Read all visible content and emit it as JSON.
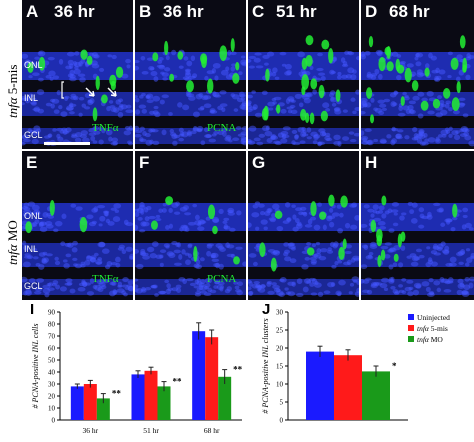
{
  "panels": [
    {
      "id": "A",
      "letter": "A",
      "time": "36 hr",
      "layers": [
        "ONL",
        "INL",
        "GCL"
      ],
      "stain": "TNFα"
    },
    {
      "id": "B",
      "letter": "B",
      "time": "36 hr",
      "stain": "PCNA"
    },
    {
      "id": "C",
      "letter": "C",
      "time": "51 hr"
    },
    {
      "id": "D",
      "letter": "D",
      "time": "68 hr"
    },
    {
      "id": "E",
      "letter": "E",
      "layers": [
        "ONL",
        "INL",
        "GCL"
      ],
      "stain": "TNFα"
    },
    {
      "id": "F",
      "letter": "F",
      "stain": "PCNA"
    },
    {
      "id": "G",
      "letter": "G"
    },
    {
      "id": "H",
      "letter": "H"
    }
  ],
  "row_labels": {
    "top": {
      "gene": "tnfα",
      "suffix": " 5-mis"
    },
    "bottom": {
      "gene": "tnfα",
      "suffix": " MO"
    }
  },
  "colors": {
    "blue": "#1a1aff",
    "red": "#ff1a1a",
    "green": "#1a9a1a",
    "stain_green": "#22ee33",
    "nuclei_blue": "#2233cc"
  },
  "chart_data": [
    {
      "id": "I",
      "letter": "I",
      "type": "bar",
      "ylabel": "# PCNA-positive INL cells",
      "ylim": [
        0,
        90
      ],
      "yticks": [
        0,
        10,
        20,
        30,
        40,
        50,
        60,
        70,
        80,
        90
      ],
      "categories": [
        "36 hr",
        "51 hr",
        "68 hr"
      ],
      "series": [
        {
          "name": "Uninjected",
          "color": "#1a1aff",
          "values": [
            28,
            38,
            74
          ],
          "errors": [
            2,
            3,
            7
          ]
        },
        {
          "name": "tnfα 5-mis",
          "color": "#ff1a1a",
          "values": [
            30,
            41,
            69
          ],
          "errors": [
            3,
            3,
            6
          ]
        },
        {
          "name": "tnfα MO",
          "color": "#1a9a1a",
          "values": [
            18,
            28,
            36
          ],
          "errors": [
            4,
            4,
            6
          ]
        }
      ],
      "significance": [
        "**",
        "**",
        "**"
      ]
    },
    {
      "id": "J",
      "letter": "J",
      "type": "bar",
      "ylabel": "# PCNA-positive INL clusters",
      "ylim": [
        0,
        30
      ],
      "yticks": [
        0,
        5,
        10,
        15,
        20,
        25,
        30
      ],
      "categories": [
        ""
      ],
      "series": [
        {
          "name": "Uninjected",
          "color": "#1a1aff",
          "values": [
            19
          ],
          "errors": [
            1.5
          ]
        },
        {
          "name": "tnfα 5-mis",
          "color": "#ff1a1a",
          "values": [
            18
          ],
          "errors": [
            1.5
          ]
        },
        {
          "name": "tnfα MO",
          "color": "#1a9a1a",
          "values": [
            13.5
          ],
          "errors": [
            1.5
          ]
        }
      ],
      "significance": [
        "*"
      ],
      "legend": {
        "placement": "top-right",
        "items": [
          {
            "gene": "",
            "suffix": "Uninjected"
          },
          {
            "gene": "tnfα",
            "suffix": " 5-mis"
          },
          {
            "gene": "tnfα",
            "suffix": " MO"
          }
        ]
      }
    }
  ]
}
